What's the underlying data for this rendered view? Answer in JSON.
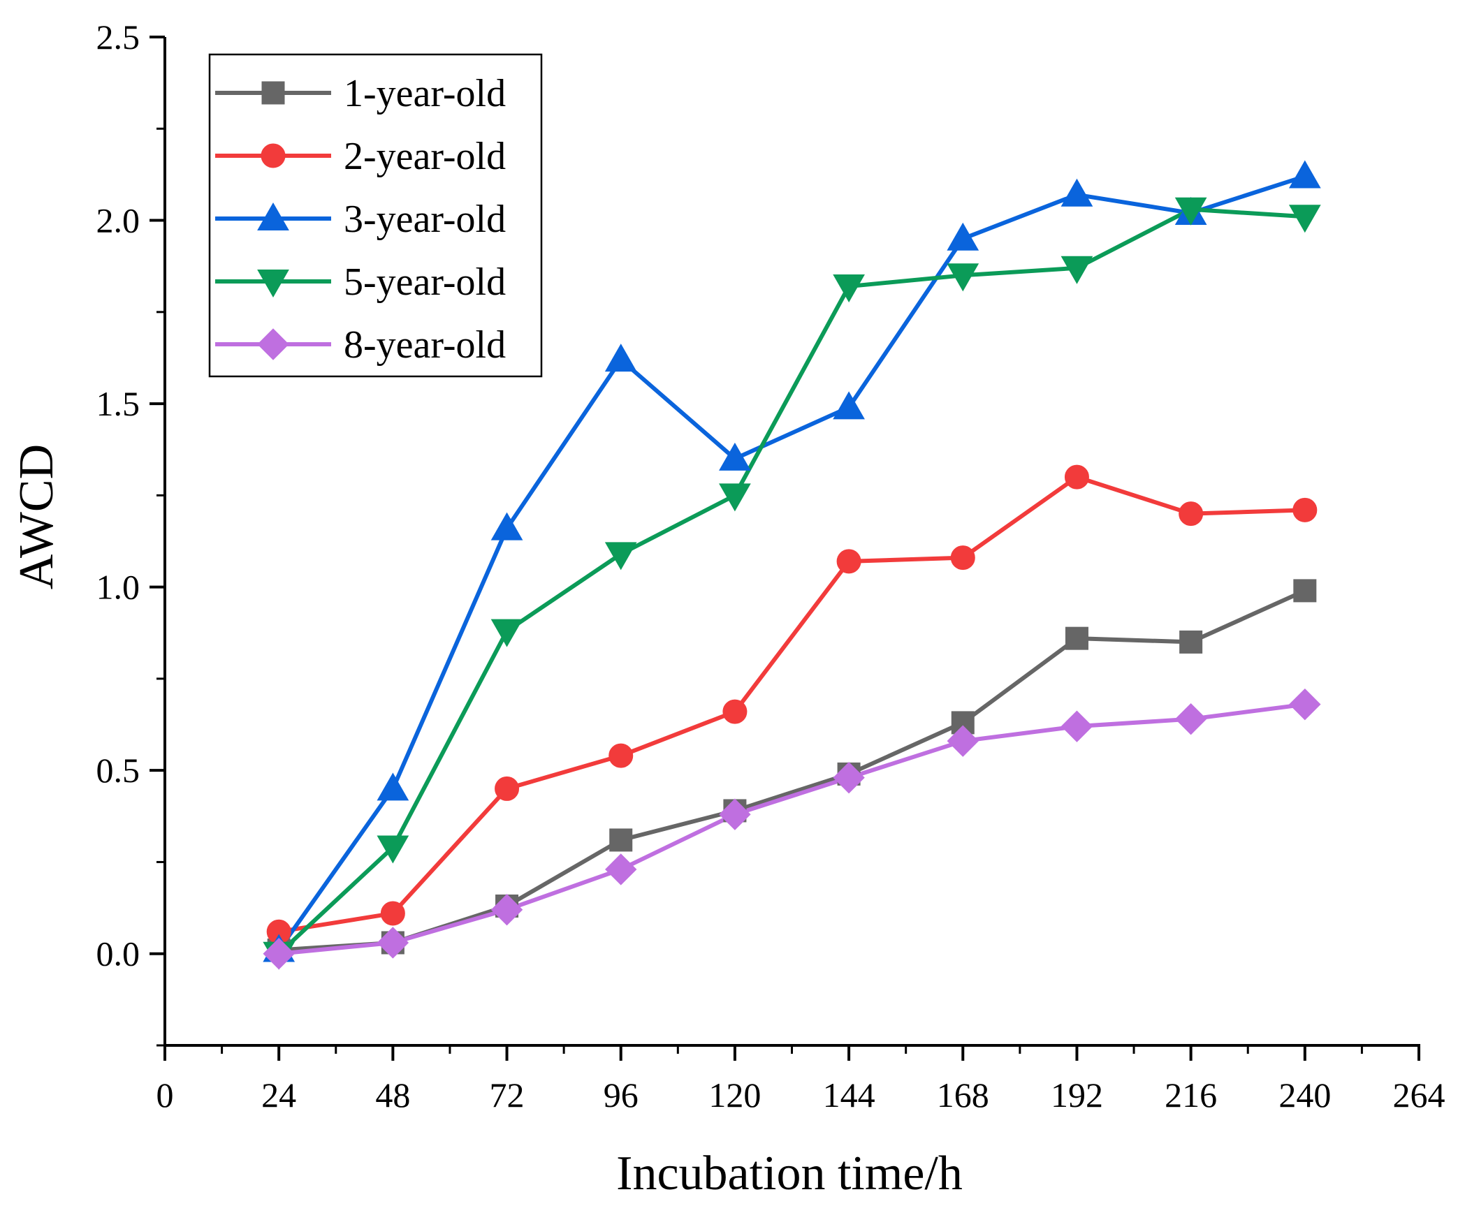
{
  "chart_data": {
    "type": "line",
    "title": "",
    "xlabel": "Incubation time/h",
    "ylabel": "AWCD",
    "xlim": [
      0,
      264
    ],
    "ylim": [
      -0.25,
      2.5
    ],
    "x_ticks": [
      "0",
      "24",
      "48",
      "72",
      "96",
      "120",
      "144",
      "168",
      "192",
      "216",
      "240",
      "264"
    ],
    "y_ticks": [
      "0.0",
      "0.5",
      "1.0",
      "1.5",
      "2.0",
      "2.5"
    ],
    "legend_position": "top-left",
    "x": [
      24,
      48,
      72,
      96,
      120,
      144,
      168,
      192,
      216,
      240
    ],
    "series": [
      {
        "name": "1-year-old",
        "color": "#666666",
        "marker": "square",
        "values": [
          0.01,
          0.03,
          0.13,
          0.31,
          0.39,
          0.49,
          0.63,
          0.86,
          0.85,
          0.99
        ]
      },
      {
        "name": "2-year-old",
        "color": "#f23b3b",
        "marker": "circle",
        "values": [
          0.06,
          0.11,
          0.45,
          0.54,
          0.66,
          1.07,
          1.08,
          1.3,
          1.2,
          1.21
        ]
      },
      {
        "name": "3-year-old",
        "color": "#0a64dc",
        "marker": "triangle-up",
        "values": [
          0.01,
          0.45,
          1.16,
          1.62,
          1.35,
          1.49,
          1.95,
          2.07,
          2.02,
          2.12
        ]
      },
      {
        "name": "5-year-old",
        "color": "#0b9b58",
        "marker": "triangle-down",
        "values": [
          0.0,
          0.29,
          0.88,
          1.09,
          1.25,
          1.82,
          1.85,
          1.87,
          2.03,
          2.01
        ]
      },
      {
        "name": "8-year-old",
        "color": "#bf6fe0",
        "marker": "diamond",
        "values": [
          0.0,
          0.03,
          0.12,
          0.23,
          0.38,
          0.48,
          0.58,
          0.62,
          0.64,
          0.68
        ]
      }
    ]
  }
}
